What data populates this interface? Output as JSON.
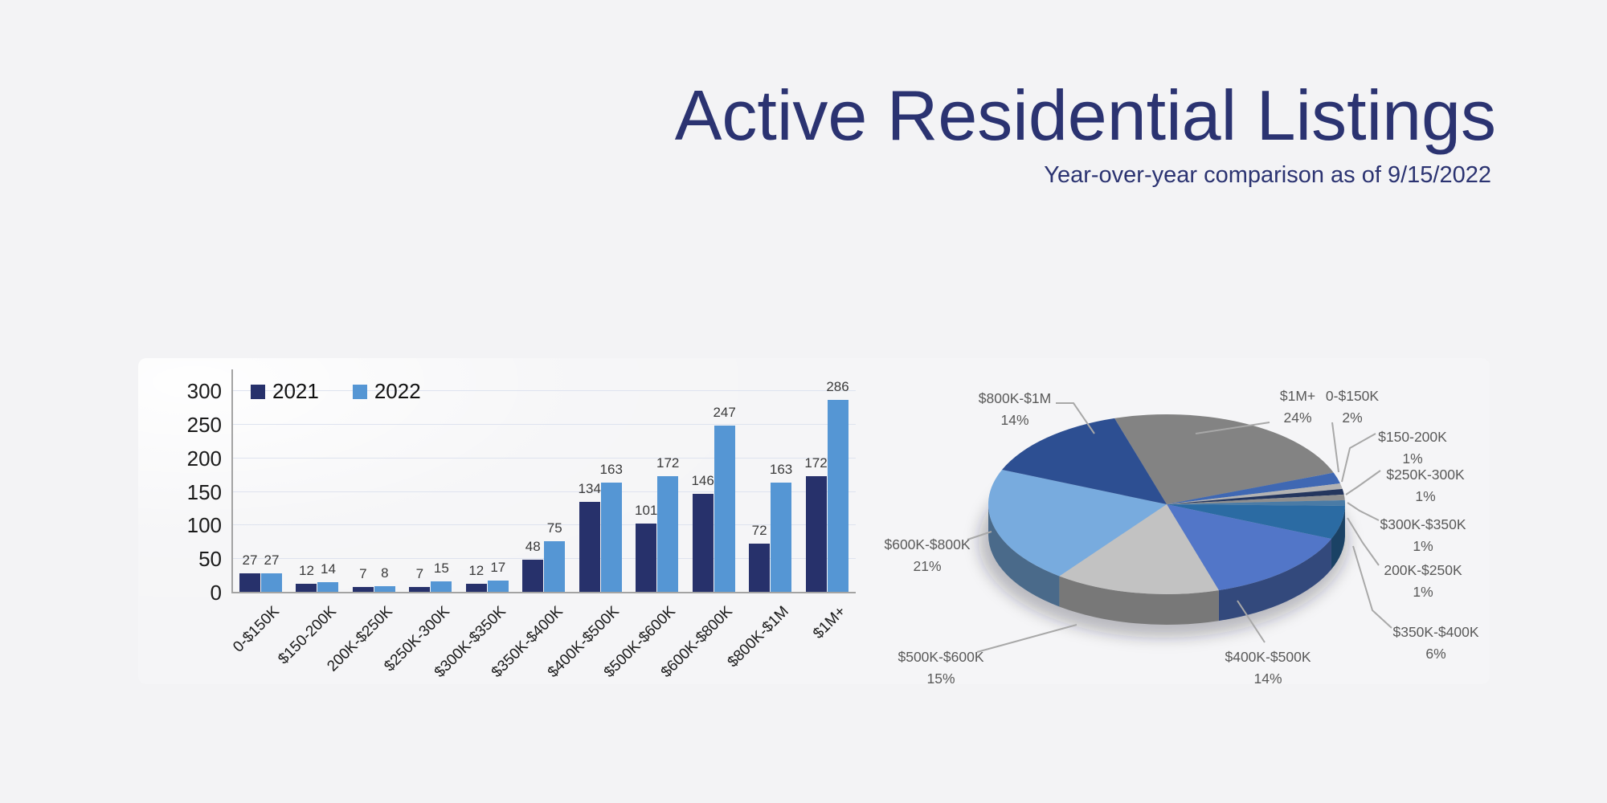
{
  "header": {
    "title": "Active Residential Listings",
    "subtitle": "Year-over-year comparison as of 9/15/2022"
  },
  "colors": {
    "background": "#f3f3f5",
    "title_text": "#2b3371",
    "axis_line": "#a3a3a3",
    "gridline": "#dee3ef",
    "tick_text": "#1a1a1a",
    "value_label_text": "#3a3a3a",
    "pie_label_text": "#595959",
    "leader_line": "#a8a8a8",
    "series_2021": "#27316b",
    "series_2022": "#5596d4"
  },
  "chart_data": [
    {
      "type": "bar",
      "title": "",
      "categories": [
        "0-$150K",
        "$150-200K",
        "200K-$250K",
        "$250K-300K",
        "$300K-$350K",
        "$350K-$400K",
        "$400K-$500K",
        "$500K-$600K",
        "$600K-$800K",
        "$800K-$1M",
        "$1M+"
      ],
      "series": [
        {
          "name": "2021",
          "color": "#27316b",
          "values": [
            27,
            12,
            7,
            7,
            12,
            48,
            134,
            101,
            146,
            72,
            172
          ]
        },
        {
          "name": "2022",
          "color": "#5596d4",
          "values": [
            27,
            14,
            8,
            15,
            17,
            75,
            163,
            172,
            247,
            163,
            286
          ]
        }
      ],
      "xlabel": "",
      "ylabel": "",
      "ylim": [
        0,
        300
      ],
      "yticks": [
        0,
        50,
        100,
        150,
        200,
        250,
        300
      ],
      "grid": true,
      "value_labels": true,
      "legend_position": "top-left"
    },
    {
      "type": "pie",
      "style": "3d",
      "start_angle_deg": -17,
      "direction": "clockwise",
      "slices": [
        {
          "label": "$1M+",
          "pct": 24,
          "color": "#838383"
        },
        {
          "label": "0-$150K",
          "pct": 2,
          "color": "#3f68b3"
        },
        {
          "label": "$150-200K",
          "pct": 1,
          "color": "#b3b3b3"
        },
        {
          "label": "200K-$250K",
          "pct": 1,
          "color": "#24365e"
        },
        {
          "label": "$250K-300K",
          "pct": 1,
          "color": "#8f8f8f"
        },
        {
          "label": "$300K-$350K",
          "pct": 1,
          "color": "#4a7ba6"
        },
        {
          "label": "$350K-$400K",
          "pct": 6,
          "color": "#2b6ba3"
        },
        {
          "label": "$400K-$500K",
          "pct": 14,
          "color": "#5276c8"
        },
        {
          "label": "$500K-$600K",
          "pct": 15,
          "color": "#c2c2c2"
        },
        {
          "label": "$600K-$800K",
          "pct": 21,
          "color": "#78abde"
        },
        {
          "label": "$800K-$1M",
          "pct": 14,
          "color": "#2d4f92"
        }
      ],
      "label_format": "label + percent"
    }
  ]
}
